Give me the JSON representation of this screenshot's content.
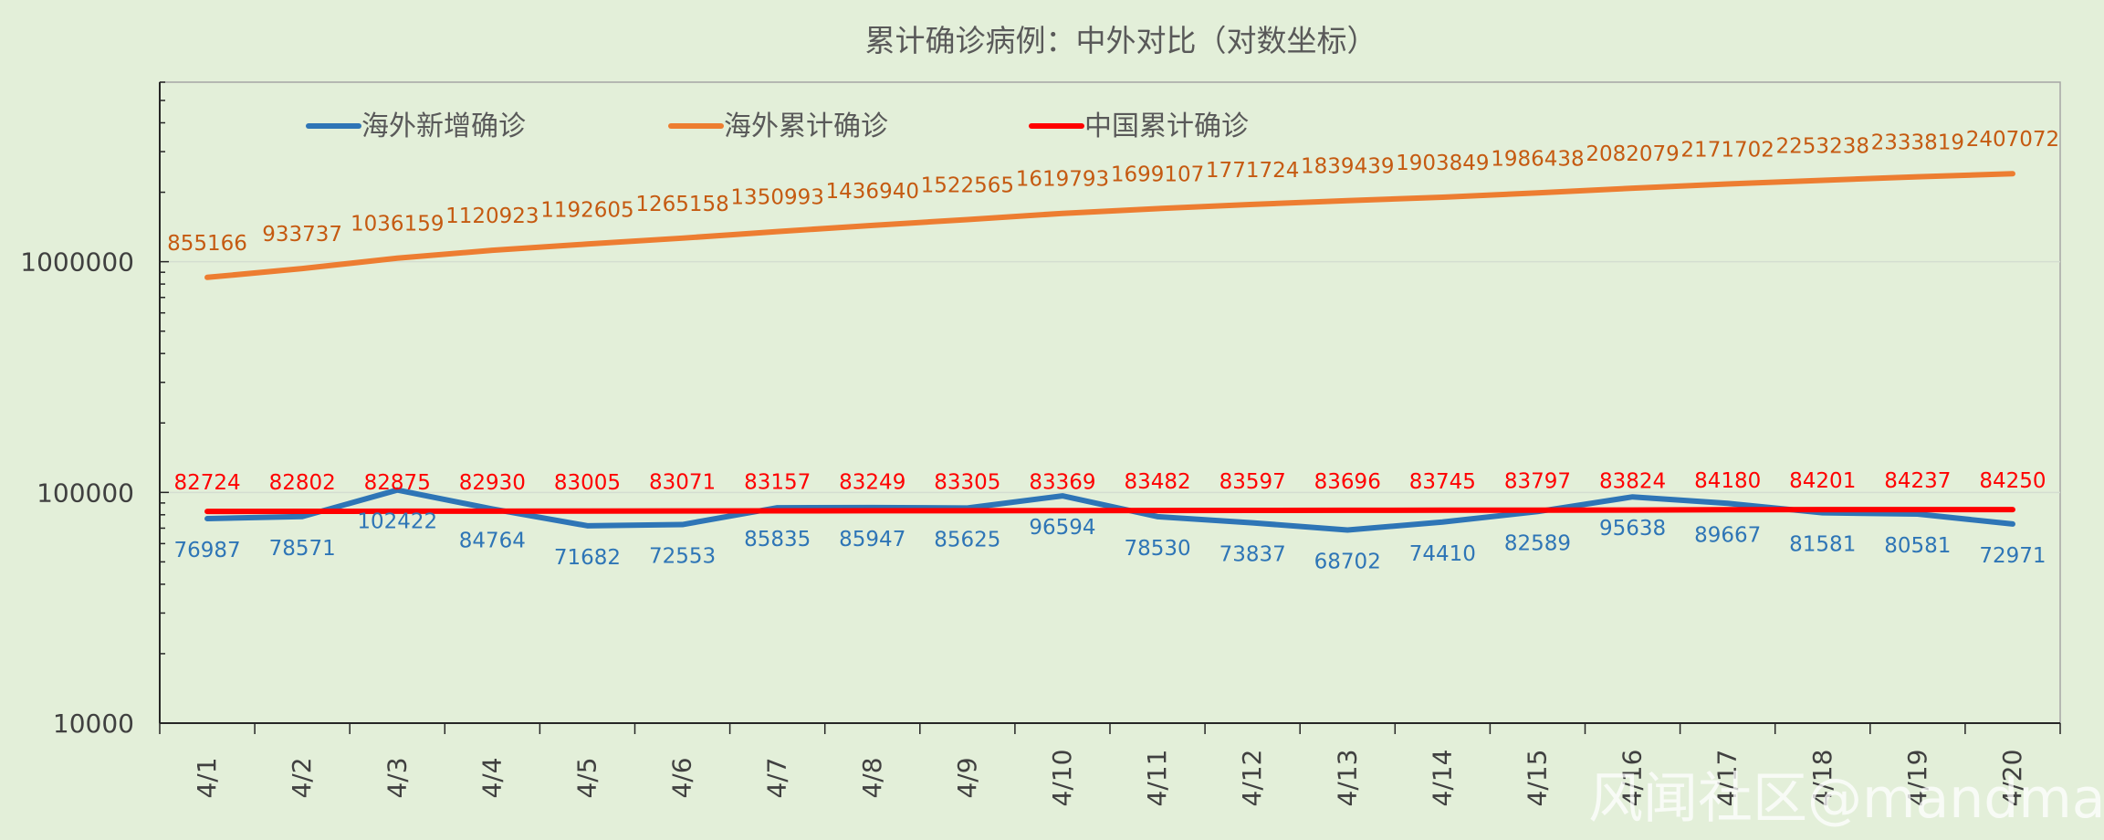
{
  "chart_data": {
    "type": "line",
    "title": "累计确诊病例：中外对比（对数坐标）",
    "y_scale": "log",
    "ylim": [
      10000,
      6000000
    ],
    "y_ticks": [
      "10000",
      "100000",
      "1000000"
    ],
    "categories": [
      "4/1",
      "4/2",
      "4/3",
      "4/4",
      "4/5",
      "4/6",
      "4/7",
      "4/8",
      "4/9",
      "4/10",
      "4/11",
      "4/12",
      "4/13",
      "4/14",
      "4/15",
      "4/16",
      "4/17",
      "4/18",
      "4/19",
      "4/20"
    ],
    "legend_position": "top-left",
    "grid": true,
    "series": [
      {
        "name": "海外新增确诊",
        "color": "#2e75b6",
        "label_position": "below",
        "values": [
          76987,
          78571,
          102422,
          84764,
          71682,
          72553,
          85835,
          85947,
          85625,
          96594,
          78530,
          73837,
          68702,
          74410,
          82589,
          95638,
          89667,
          81581,
          80581,
          72971
        ]
      },
      {
        "name": "海外累计确诊",
        "color": "#ed7d31",
        "label_color": "#c55a11",
        "label_position": "above",
        "values": [
          855166,
          933737,
          1036159,
          1120923,
          1192605,
          1265158,
          1350993,
          1436940,
          1522565,
          1619793,
          1699107,
          1771724,
          1839439,
          1903849,
          1986438,
          2082079,
          2171702,
          2253238,
          2333819,
          2407072
        ]
      },
      {
        "name": "中国累计确诊",
        "color": "#ff0000",
        "label_position": "above",
        "values": [
          82724,
          82802,
          82875,
          82930,
          83005,
          83071,
          83157,
          83249,
          83305,
          83369,
          83482,
          83597,
          83696,
          83745,
          83797,
          83824,
          84180,
          84201,
          84237,
          84250
        ]
      }
    ]
  },
  "watermark": "风闻社区@mandman"
}
